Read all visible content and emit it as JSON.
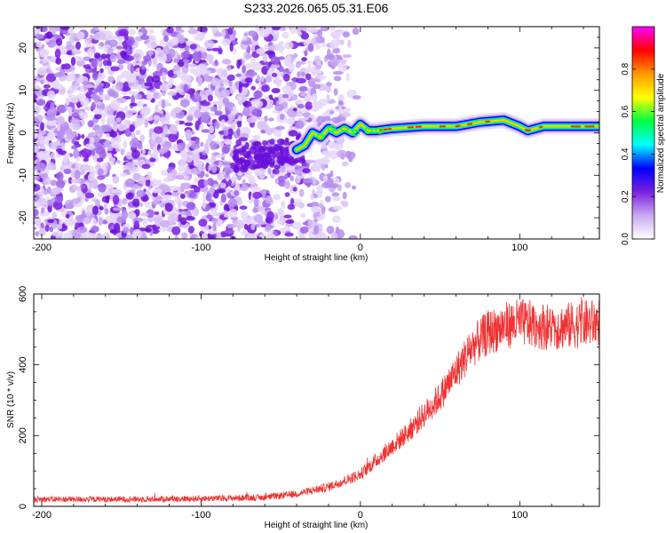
{
  "title": "S233.2026.065.05.31.E06",
  "chart_data": [
    {
      "type": "heatmap",
      "name": "spectrogram",
      "xlabel": "Height of straight line (km)",
      "ylabel": "Frequency (Hz)",
      "xlim": [
        -205,
        150
      ],
      "ylim": [
        -25,
        25
      ],
      "xticks": [
        -200,
        -100,
        0,
        100
      ],
      "yticks": [
        -20,
        -10,
        0,
        10,
        20
      ],
      "ridge": {
        "description": "narrow high-amplitude line near 0-3 Hz for heights above about -40 km",
        "points": [
          {
            "x": -40,
            "y": -4
          },
          {
            "x": -35,
            "y": -3
          },
          {
            "x": -30,
            "y": 0
          },
          {
            "x": -25,
            "y": -1
          },
          {
            "x": -20,
            "y": 1
          },
          {
            "x": -15,
            "y": 0
          },
          {
            "x": -10,
            "y": 1
          },
          {
            "x": -5,
            "y": 0
          },
          {
            "x": 0,
            "y": 2
          },
          {
            "x": 5,
            "y": 0.5
          },
          {
            "x": 10,
            "y": 0.5
          },
          {
            "x": 20,
            "y": 1
          },
          {
            "x": 40,
            "y": 1.5
          },
          {
            "x": 60,
            "y": 1.5
          },
          {
            "x": 75,
            "y": 2.5
          },
          {
            "x": 90,
            "y": 3
          },
          {
            "x": 100,
            "y": 1.5
          },
          {
            "x": 105,
            "y": 0.5
          },
          {
            "x": 115,
            "y": 1.5
          },
          {
            "x": 150,
            "y": 1.5
          }
        ]
      },
      "noise_region": {
        "x_from": -205,
        "x_to": -30,
        "x_fade_to": 0
      },
      "colorbar": {
        "label": "Normalized spectral amplitude",
        "range": [
          0.0,
          1.0
        ],
        "ticks": [
          "0.0",
          "0.2",
          "0.4",
          "0.6",
          "0.8"
        ],
        "colors": [
          "#ffffff",
          "#c9a8f2",
          "#7a1fe0",
          "#0000ff",
          "#00ffff",
          "#00ff40",
          "#ffff00",
          "#ff9900",
          "#ff0000",
          "#ff00ff"
        ]
      }
    },
    {
      "type": "line",
      "name": "snr",
      "xlabel": "Height of straight line (km)",
      "ylabel": "SNR (10 * v/v)",
      "xlim": [
        -205,
        150
      ],
      "ylim": [
        0,
        600
      ],
      "xticks": [
        -200,
        -100,
        0,
        100
      ],
      "yticks": [
        0,
        200,
        400,
        600
      ],
      "color": "#ee3333",
      "series": [
        {
          "name": "SNR",
          "x": [
            -205,
            -150,
            -100,
            -60,
            -40,
            -20,
            0,
            10,
            20,
            30,
            40,
            50,
            60,
            70,
            80,
            90,
            100,
            120,
            150
          ],
          "y": [
            20,
            20,
            22,
            25,
            35,
            55,
            90,
            130,
            170,
            210,
            260,
            310,
            380,
            450,
            490,
            510,
            520,
            505,
            520
          ]
        }
      ]
    }
  ]
}
